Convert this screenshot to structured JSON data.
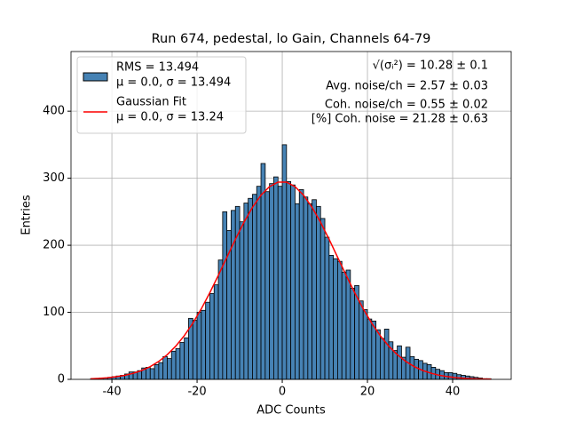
{
  "chart_data": {
    "type": "histogram",
    "title": "Run 674, pedestal, lo Gain, Channels 64-79",
    "xlabel": "ADC Counts",
    "ylabel": "Entries",
    "xlim": [
      -49.6,
      53.75
    ],
    "ylim": [
      0,
      489
    ],
    "xticks": [
      -40,
      -20,
      0,
      20,
      40
    ],
    "yticks": [
      0,
      100,
      200,
      300,
      400
    ],
    "grid": true,
    "legend": "upper left",
    "bins": [
      -45,
      -44,
      -43,
      -42,
      -41,
      -40,
      -39,
      -38,
      -37,
      -36,
      -35,
      -34,
      -33,
      -32,
      -31,
      -30,
      -29,
      -28,
      -27,
      -26,
      -25,
      -24,
      -23,
      -22,
      -21,
      -20,
      -19,
      -18,
      -17,
      -16,
      -15,
      -14,
      -13,
      -12,
      -11,
      -10,
      -9,
      -8,
      -7,
      -6,
      -5,
      -4,
      -3,
      -2,
      -1,
      0,
      1,
      2,
      3,
      4,
      5,
      6,
      7,
      8,
      9,
      10,
      11,
      12,
      13,
      14,
      15,
      16,
      17,
      18,
      19,
      20,
      21,
      22,
      23,
      24,
      25,
      26,
      27,
      28,
      29,
      30,
      31,
      32,
      33,
      34,
      35,
      36,
      37,
      38,
      39,
      40,
      41,
      42,
      43,
      44,
      45,
      46,
      47,
      48,
      49
    ],
    "series": [
      {
        "name": [
          "RMS = 13.494",
          "μ = 0.0, σ = 13.494"
        ],
        "type": "histogram",
        "color": "#4682b4",
        "edgecolor": "#000000",
        "values": [
          1,
          1,
          2,
          2,
          3,
          4,
          5,
          6,
          8,
          11,
          11,
          13,
          17,
          18,
          16,
          22,
          25,
          34,
          31,
          42,
          46,
          55,
          62,
          91,
          88,
          100,
          103,
          115,
          128,
          141,
          178,
          250,
          222,
          252,
          258,
          235,
          263,
          270,
          276,
          288,
          322,
          280,
          292,
          302,
          288,
          350,
          295,
          290,
          262,
          283,
          272,
          262,
          268,
          258,
          240,
          212,
          185,
          180,
          176,
          160,
          163,
          136,
          140,
          117,
          104,
          90,
          87,
          74,
          61,
          75,
          56,
          43,
          50,
          33,
          48,
          34,
          30,
          28,
          24,
          22,
          18,
          15,
          13,
          10,
          10,
          9,
          7,
          6,
          5,
          4,
          3,
          2,
          1,
          1
        ]
      },
      {
        "name": [
          "Gaussian Fit",
          "μ = 0.0, σ = 13.24"
        ],
        "type": "line",
        "color": "#ff0000",
        "x": [
          -45,
          -43,
          -41,
          -39,
          -37,
          -35,
          -33,
          -31,
          -29,
          -27,
          -25,
          -23,
          -21,
          -19,
          -17,
          -15,
          -13,
          -11,
          -9,
          -7,
          -5,
          -3,
          -1,
          1,
          3,
          5,
          7,
          9,
          11,
          13,
          15,
          17,
          19,
          21,
          23,
          25,
          27,
          29,
          31,
          33,
          35,
          37,
          39,
          41,
          43,
          45,
          47,
          49
        ],
        "values": [
          0.9,
          1.5,
          2.4,
          3.9,
          5.9,
          9.0,
          13.2,
          19.0,
          26.8,
          36.9,
          49.6,
          65.2,
          83.8,
          105.3,
          129.4,
          155.3,
          182.2,
          208.9,
          234.2,
          256.6,
          274.7,
          287.5,
          294.2,
          294.2,
          287.5,
          274.7,
          256.6,
          234.2,
          208.9,
          182.2,
          155.3,
          129.4,
          105.3,
          83.8,
          65.2,
          49.6,
          36.9,
          26.8,
          19.0,
          13.2,
          9.0,
          5.9,
          3.9,
          2.4,
          1.5,
          0.9,
          0.5,
          0.3
        ]
      }
    ],
    "annotations": [
      "√(σᵢ²) = 10.28 ± 0.1",
      "Avg. noise/ch = 2.57 ± 0.03",
      "Coh. noise/ch = 0.55 ± 0.02",
      "[%] Coh. noise = 21.28 ± 0.63"
    ]
  }
}
